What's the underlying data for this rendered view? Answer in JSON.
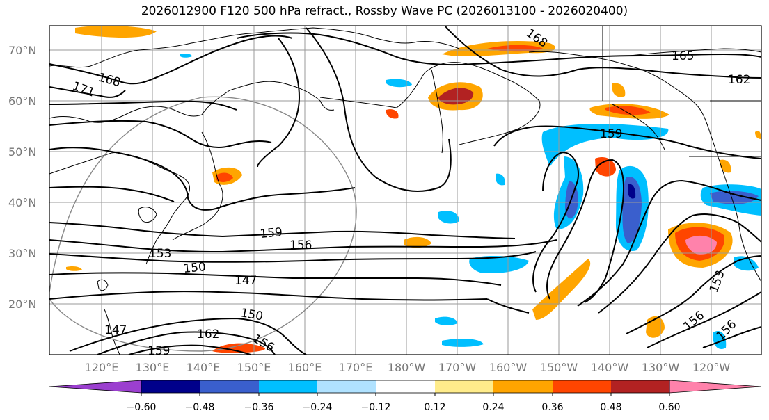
{
  "title": "2026012900 F120 500 hPa refract., Rossby Wave PC (2026013100 - 2026020400)",
  "lat_labels": [
    "70°N",
    "60°N",
    "50°N",
    "40°N",
    "30°N",
    "20°N"
  ],
  "lon_labels": [
    "120°E",
    "130°E",
    "140°E",
    "150°E",
    "160°E",
    "170°E",
    "180°W",
    "170°W",
    "160°W",
    "150°W",
    "140°W",
    "130°W",
    "120°W"
  ],
  "contour_labels": [
    "168",
    "171",
    "168",
    "165",
    "162",
    "159",
    "159",
    "156",
    "153",
    "150",
    "147",
    "150",
    "147",
    "162",
    "156",
    "153",
    "156",
    "156",
    "159"
  ],
  "colorbar": {
    "ticks": [
      "−0.60",
      "−0.48",
      "−0.36",
      "−0.24",
      "−0.12",
      "0.12",
      "0.24",
      "0.36",
      "0.48",
      "0.60"
    ],
    "colors": [
      "#9b3fcf",
      "#00008b",
      "#3a5fcd",
      "#00bfff",
      "#b0e2ff",
      "#ffffff",
      "#ffec8b",
      "#ffa500",
      "#ff4500",
      "#b22222",
      "#ff82ab"
    ]
  },
  "colors": {
    "neg_strong": "#3a5fcd",
    "neg": "#00bfff",
    "neg_weak": "#b0e2ff",
    "pos_weak": "#ffec8b",
    "pos": "#ffa500",
    "pos_strong": "#ff4500",
    "pos_vstrong": "#b22222",
    "pos_extreme": "#ff82ab"
  }
}
